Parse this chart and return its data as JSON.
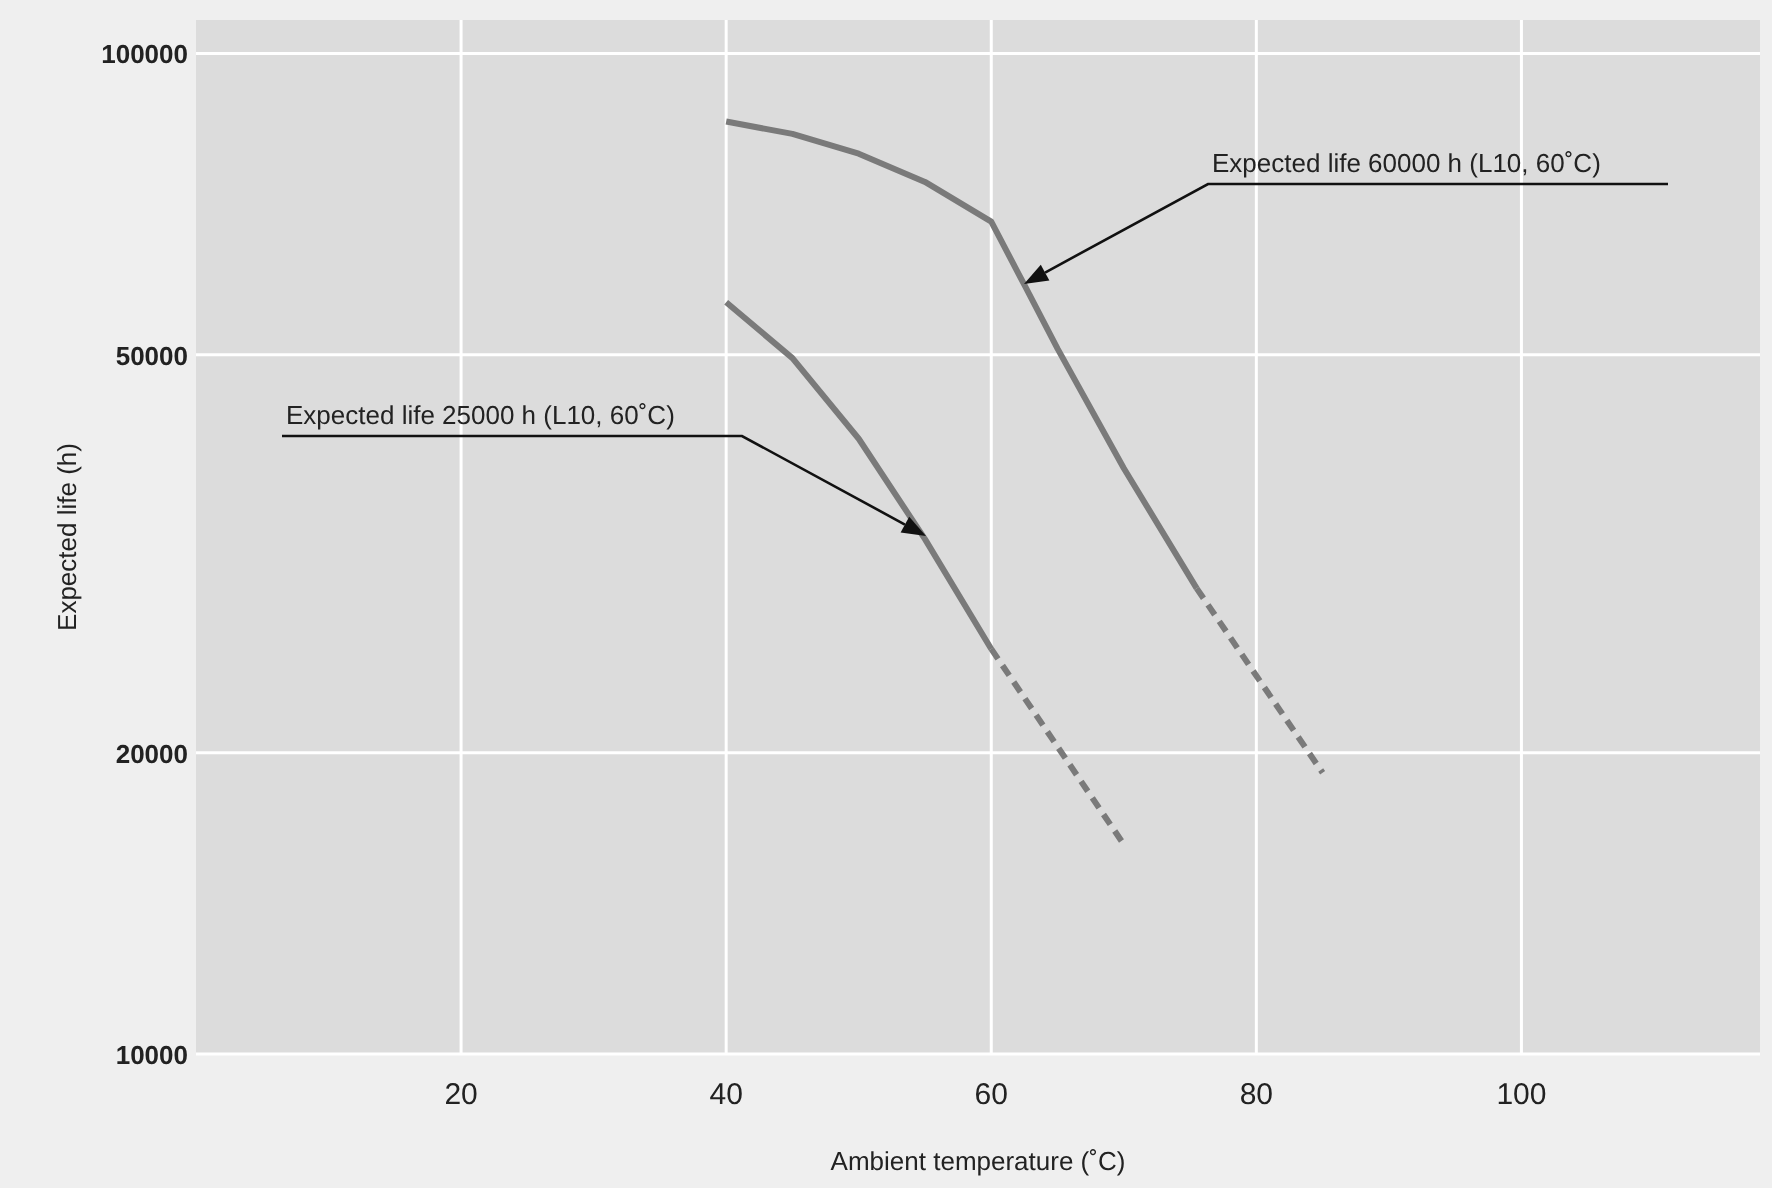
{
  "chart_data": {
    "type": "line",
    "xlabel": "Ambient temperature (˚C)",
    "ylabel": "Expected life (h)",
    "log": "y",
    "grid": true,
    "xlim": [
      0,
      118
    ],
    "xticks": [
      20,
      40,
      60,
      80,
      100
    ],
    "ylim": [
      10000,
      108000
    ],
    "yticks": [
      10000,
      20000,
      50000,
      100000
    ],
    "marker": "none",
    "series": [
      {
        "color": "#7a7a7a",
        "line_style": "solid",
        "x": [
          40,
          45,
          50,
          55,
          60,
          62.5,
          65,
          70,
          75.5
        ],
        "values": [
          85500,
          83100,
          79400,
          74400,
          67900,
          58700,
          50700,
          38500,
          29200
        ]
      },
      {
        "color": "#7a7a7a",
        "line_style": "dashed",
        "x": [
          75.5,
          85
        ],
        "values": [
          29200,
          19100
        ]
      },
      {
        "color": "#7a7a7a",
        "line_style": "solid",
        "x": [
          40,
          45,
          50,
          55,
          60
        ],
        "values": [
          56400,
          49600,
          41200,
          32700,
          25400
        ]
      },
      {
        "color": "#7a7a7a",
        "line_style": "dashed",
        "x": [
          60,
          70
        ],
        "values": [
          25400,
          16200
        ]
      }
    ],
    "annotations": [
      "Expected life 60000 h (L10, 60˚C)",
      "Expected life 25000 h (L10, 60˚C)"
    ]
  }
}
